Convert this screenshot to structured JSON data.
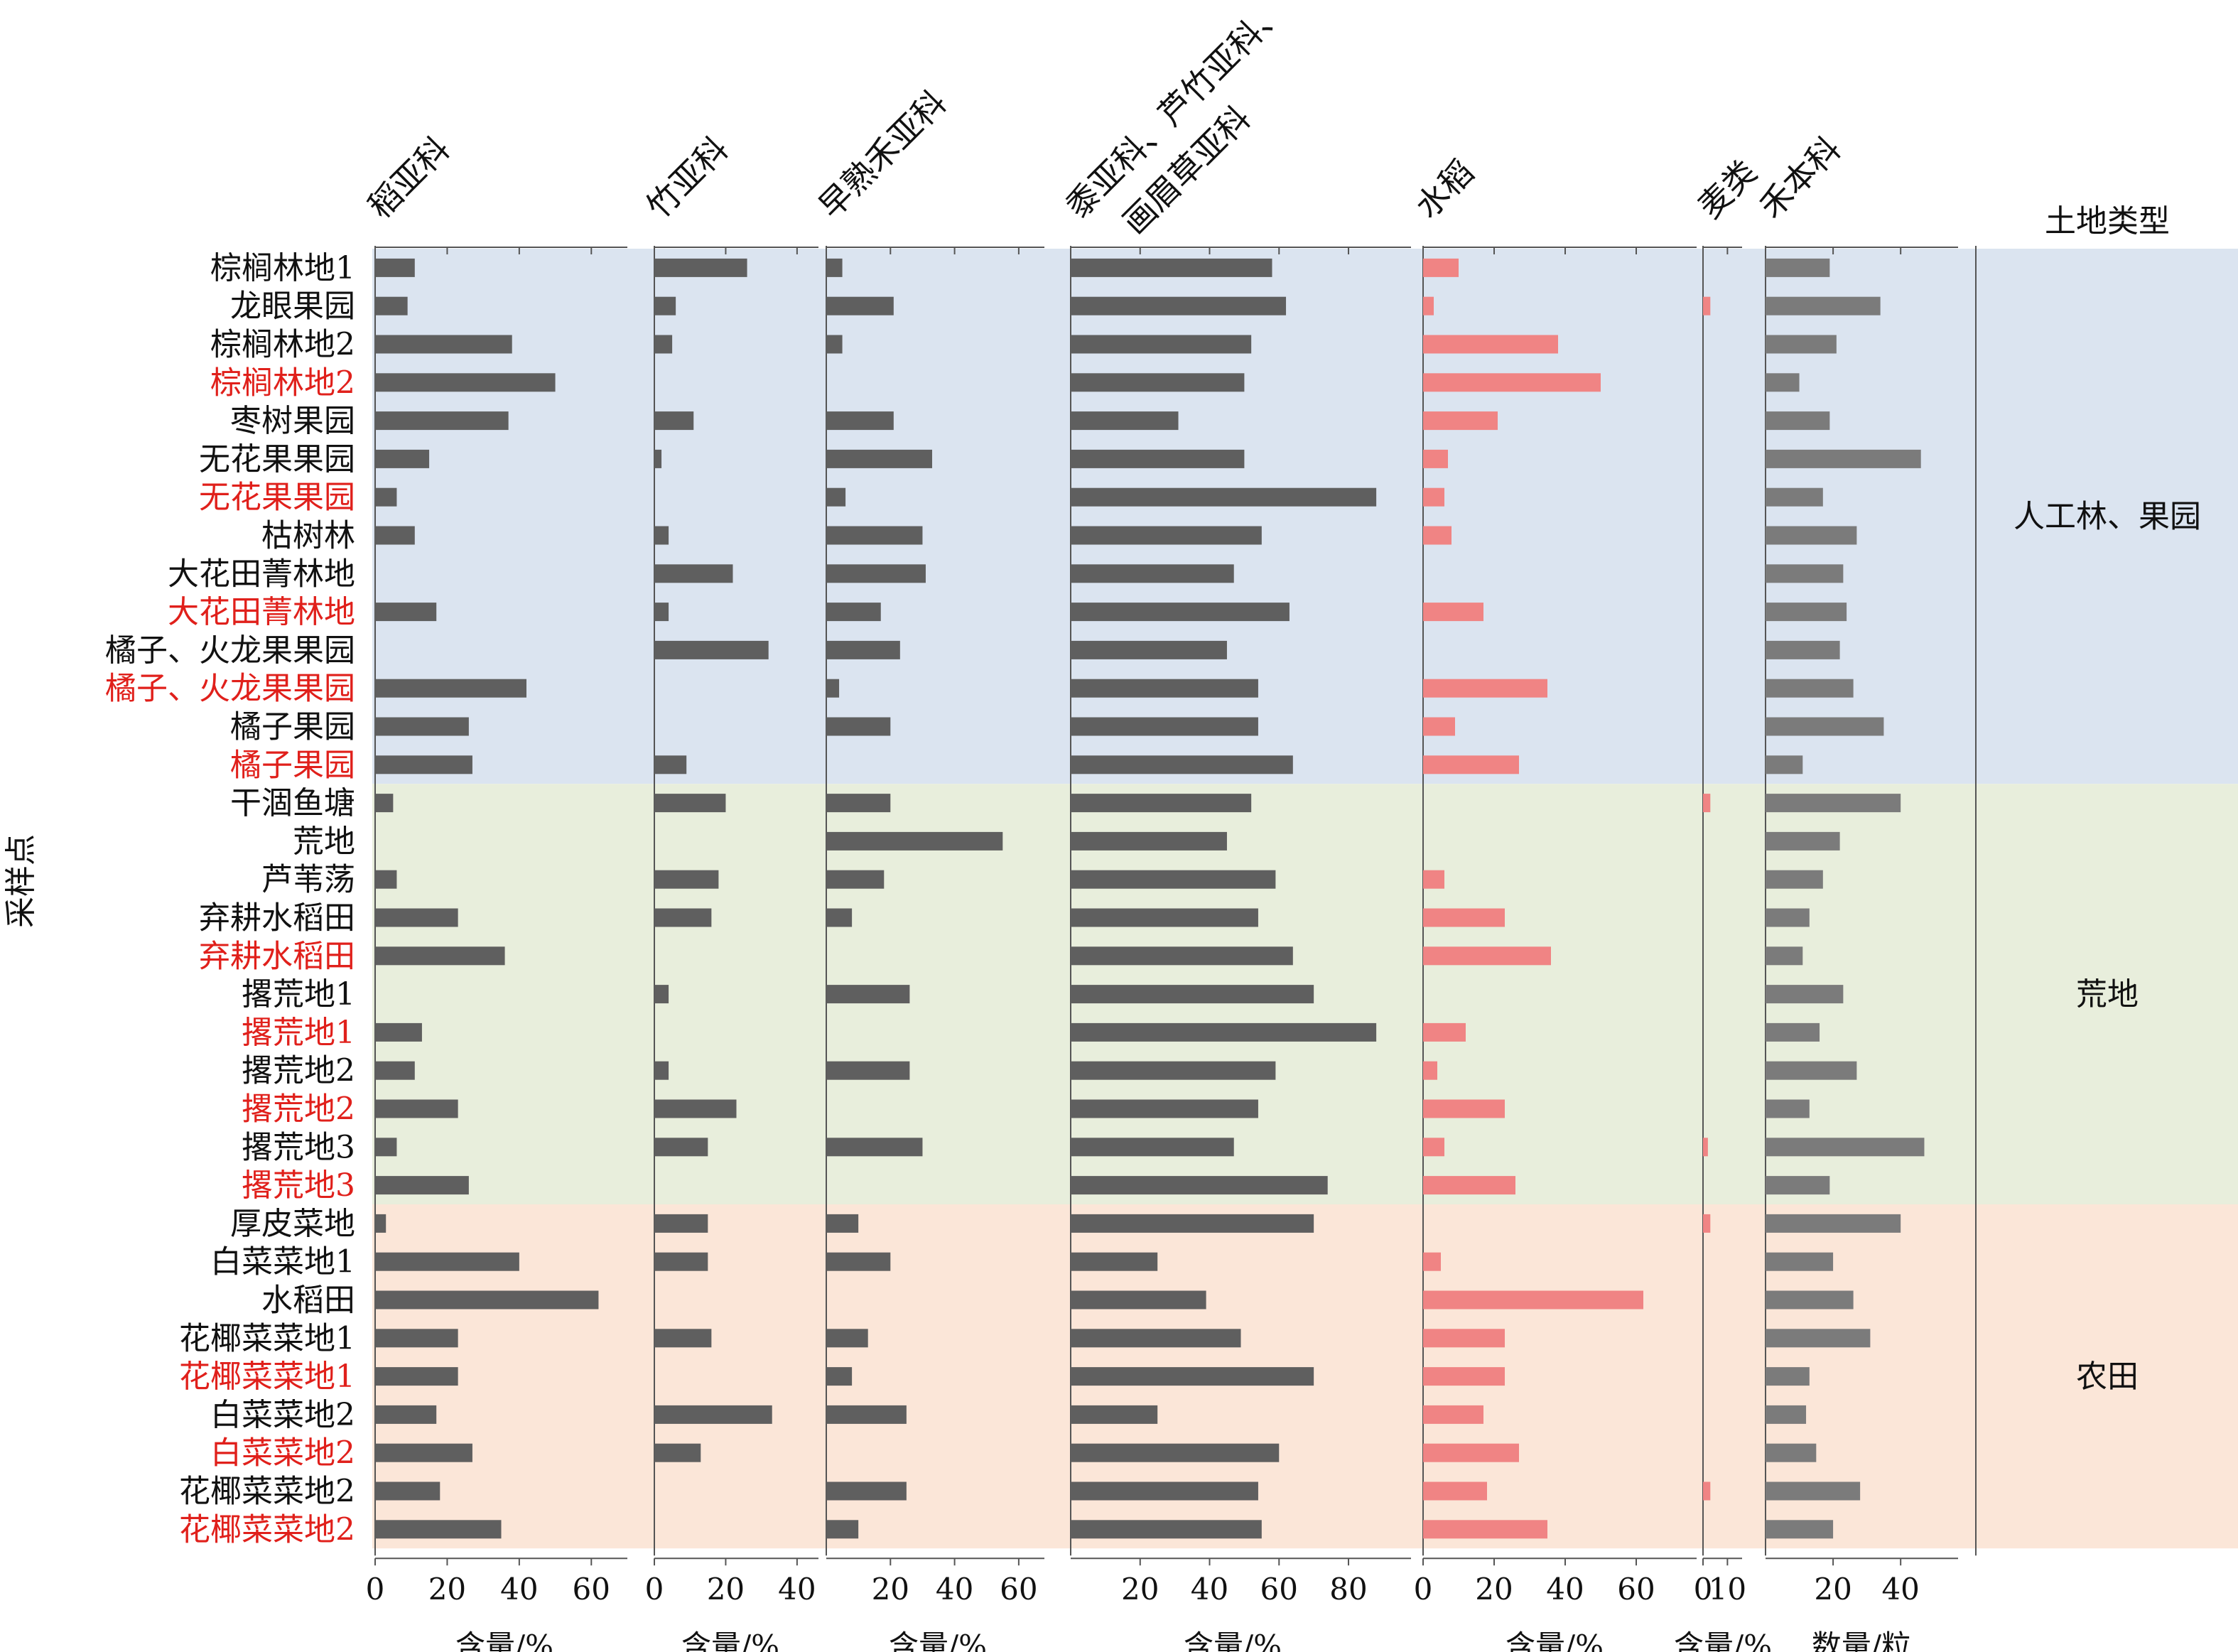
{
  "chart_data": {
    "type": "bar",
    "orientation": "horizontal",
    "y_axis_label": "采样点",
    "land_type_header": "土地类型",
    "colors": {
      "bar_gray": "#5f5f5f",
      "bar_gray_light": "#7b7b7b",
      "bar_red": "#f08484",
      "label_red": "#e0201b",
      "label_black": "#111111",
      "band_blue": "#dbe4f0",
      "band_green": "#e8eedc",
      "band_peach": "#fbe6d8",
      "axis": "#555555"
    },
    "categories": [
      "棕榈林地1",
      "龙眼果园",
      "棕榈林地2",
      "棕榈林地2",
      "枣树果园",
      "无花果果园",
      "无花果果园",
      "枯树林",
      "大花田菁林地",
      "大花田菁林地",
      "橘子、火龙果果园",
      "橘子、火龙果果园",
      "橘子果园",
      "橘子果园",
      "干涸鱼塘",
      "荒地",
      "芦苇荡",
      "弃耕水稻田",
      "弃耕水稻田",
      "撂荒地1",
      "撂荒地1",
      "撂荒地2",
      "撂荒地2",
      "撂荒地3",
      "撂荒地3",
      "厚皮菜地",
      "白菜菜地1",
      "水稻田",
      "花椰菜菜地1",
      "花椰菜菜地1",
      "白菜菜地2",
      "白菜菜地2",
      "花椰菜菜地2",
      "花椰菜菜地2"
    ],
    "highlighted": [
      false,
      false,
      false,
      true,
      false,
      false,
      true,
      false,
      false,
      true,
      false,
      true,
      false,
      true,
      false,
      false,
      false,
      false,
      true,
      false,
      true,
      false,
      true,
      false,
      true,
      false,
      false,
      false,
      false,
      true,
      false,
      true,
      false,
      true
    ],
    "land_types": [
      {
        "name": "人工林、果园",
        "start": 0,
        "end": 13
      },
      {
        "name": "荒地",
        "start": 14,
        "end": 24
      },
      {
        "name": "农田",
        "start": 25,
        "end": 33
      }
    ],
    "series": [
      {
        "name": "稻亚科",
        "unit": "含量/%",
        "xlim": [
          0,
          70
        ],
        "ticks": [
          "0",
          "20",
          "40",
          "60"
        ],
        "tick_values": [
          0,
          20,
          40,
          60
        ],
        "color": "bar_gray",
        "values": [
          11,
          9,
          38,
          50,
          37,
          15,
          6,
          11,
          0,
          17,
          0,
          42,
          26,
          27,
          5,
          0,
          6,
          23,
          36,
          0,
          13,
          11,
          23,
          6,
          26,
          3,
          40,
          62,
          23,
          23,
          17,
          27,
          18,
          35
        ]
      },
      {
        "name": "竹亚科",
        "unit": "含量/%",
        "xlim": [
          0,
          46
        ],
        "ticks": [
          "0",
          "20",
          "40"
        ],
        "tick_values": [
          0,
          20,
          40
        ],
        "color": "bar_gray",
        "values": [
          26,
          6,
          5,
          0,
          11,
          2,
          0,
          4,
          22,
          4,
          32,
          0,
          0,
          9,
          20,
          0,
          18,
          16,
          0,
          4,
          0,
          4,
          23,
          15,
          0,
          15,
          15,
          0,
          16,
          0,
          33,
          13,
          0,
          0
        ]
      },
      {
        "name": "早熟禾亚科",
        "unit": "含量/%",
        "xlim": [
          0,
          68
        ],
        "ticks": [
          "20",
          "40",
          "60"
        ],
        "tick_values": [
          20,
          40,
          60
        ],
        "color": "bar_gray",
        "values": [
          5,
          21,
          5,
          0,
          21,
          33,
          6,
          30,
          31,
          17,
          23,
          4,
          20,
          0,
          20,
          55,
          18,
          8,
          0,
          26,
          0,
          26,
          0,
          30,
          0,
          10,
          20,
          0,
          13,
          8,
          25,
          0,
          25,
          10
        ]
      },
      {
        "name": "黍亚科、芦竹亚科、画眉草亚科",
        "unit": "含量/%",
        "xlim": [
          0,
          98
        ],
        "ticks": [
          "20",
          "40",
          "60",
          "80"
        ],
        "tick_values": [
          20,
          40,
          60,
          80
        ],
        "color": "bar_gray",
        "values": [
          58,
          62,
          52,
          50,
          31,
          50,
          88,
          55,
          47,
          63,
          45,
          54,
          54,
          64,
          52,
          45,
          59,
          54,
          64,
          70,
          88,
          59,
          54,
          47,
          74,
          70,
          25,
          39,
          49,
          70,
          25,
          60,
          54,
          55
        ]
      },
      {
        "name": "水稻",
        "unit": "含量/%",
        "xlim": [
          0,
          77
        ],
        "ticks": [
          "0",
          "20",
          "40",
          "60"
        ],
        "tick_values": [
          0,
          20,
          40,
          60
        ],
        "color": "bar_red",
        "values": [
          10,
          3,
          38,
          50,
          21,
          7,
          6,
          8,
          0,
          17,
          0,
          35,
          9,
          27,
          0,
          0,
          6,
          23,
          36,
          0,
          12,
          4,
          23,
          6,
          26,
          0,
          5,
          62,
          23,
          23,
          17,
          27,
          18,
          35
        ]
      },
      {
        "name": "麦类",
        "unit": "含量/%",
        "xlim": [
          0,
          16
        ],
        "ticks": [
          "0",
          "10"
        ],
        "tick_values": [
          0,
          10
        ],
        "color": "bar_red",
        "values": [
          0,
          3,
          0,
          0,
          0,
          0,
          0,
          0,
          0,
          0,
          0,
          0,
          0,
          0,
          3,
          0,
          0,
          0,
          0,
          0,
          0,
          0,
          0,
          2,
          0,
          3,
          0,
          0,
          0,
          0,
          0,
          0,
          3,
          0
        ]
      },
      {
        "name": "禾本科",
        "unit": "数量/粒",
        "xlim": [
          0,
          57
        ],
        "ticks": [
          "20",
          "40"
        ],
        "tick_values": [
          20,
          40
        ],
        "color": "bar_gray_light",
        "values": [
          19,
          34,
          21,
          10,
          19,
          46,
          17,
          27,
          23,
          24,
          22,
          26,
          35,
          11,
          40,
          22,
          17,
          13,
          11,
          23,
          16,
          27,
          13,
          47,
          19,
          40,
          20,
          26,
          31,
          13,
          12,
          15,
          28,
          20
        ]
      }
    ]
  }
}
